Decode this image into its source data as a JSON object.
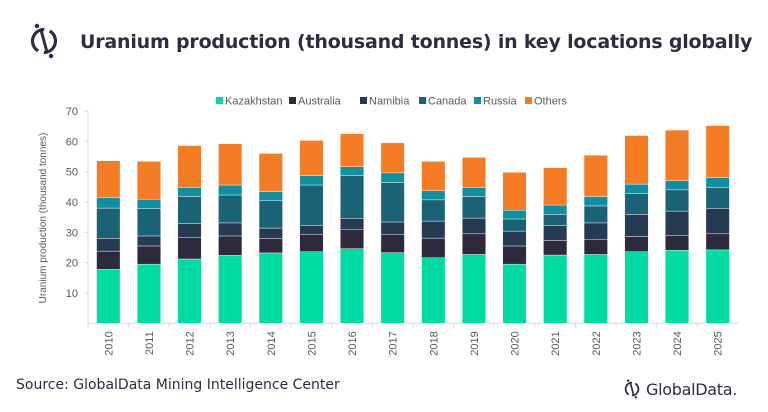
{
  "title": "Uranium production (thousand tonnes) in key locations globally",
  "source": "Source: GlobalData Mining Intelligence Center",
  "brand": "GlobalData.",
  "chart_data": {
    "type": "stacked-bar",
    "title": "",
    "xlabel": "",
    "ylabel": "Uranium production (thousand tonnes)",
    "ylim": [
      0,
      70
    ],
    "yticks": [
      10,
      20,
      30,
      40,
      50,
      60,
      70
    ],
    "grid": false,
    "legend": "top",
    "categories": [
      "2010",
      "2011",
      "2012",
      "2013",
      "2014",
      "2015",
      "2016",
      "2017",
      "2018",
      "2019",
      "2020",
      "2021",
      "2022",
      "2023",
      "2024",
      "2025"
    ],
    "series": [
      {
        "name": "Kazakhstan",
        "color": "#00dba4",
        "values": [
          17.8,
          19.5,
          21.2,
          22.4,
          23.2,
          23.6,
          24.6,
          23.3,
          21.6,
          22.7,
          19.5,
          22.5,
          22.7,
          23.6,
          24.1,
          24.2
        ]
      },
      {
        "name": "Australia",
        "color": "#2d2a3d",
        "values": [
          6.0,
          6.0,
          7.0,
          6.4,
          4.8,
          5.6,
          6.4,
          5.9,
          6.5,
          6.8,
          6.0,
          4.8,
          5.0,
          5.0,
          4.8,
          5.3
        ]
      },
      {
        "name": "Namibia",
        "color": "#263a52",
        "values": [
          4.2,
          3.3,
          4.7,
          4.3,
          3.4,
          3.0,
          3.6,
          4.2,
          5.6,
          5.2,
          4.9,
          4.9,
          5.4,
          7.3,
          8.1,
          8.4
        ]
      },
      {
        "name": "Canada",
        "color": "#1b6276",
        "values": [
          10.0,
          9.0,
          8.9,
          9.2,
          9.0,
          13.4,
          14.1,
          13.0,
          7.0,
          7.1,
          4.0,
          3.7,
          5.6,
          6.8,
          7.0,
          6.8
        ]
      },
      {
        "name": "Russia",
        "color": "#118e9f",
        "values": [
          3.5,
          3.1,
          3.0,
          3.3,
          3.0,
          3.1,
          2.9,
          3.2,
          3.0,
          3.0,
          2.9,
          3.1,
          3.1,
          3.2,
          3.0,
          3.3
        ]
      },
      {
        "name": "Others",
        "color": "#f47c25",
        "values": [
          12.1,
          12.5,
          13.8,
          13.6,
          12.6,
          11.6,
          10.9,
          9.9,
          9.7,
          9.9,
          12.5,
          12.3,
          13.6,
          16.0,
          16.7,
          17.2
        ]
      }
    ]
  }
}
